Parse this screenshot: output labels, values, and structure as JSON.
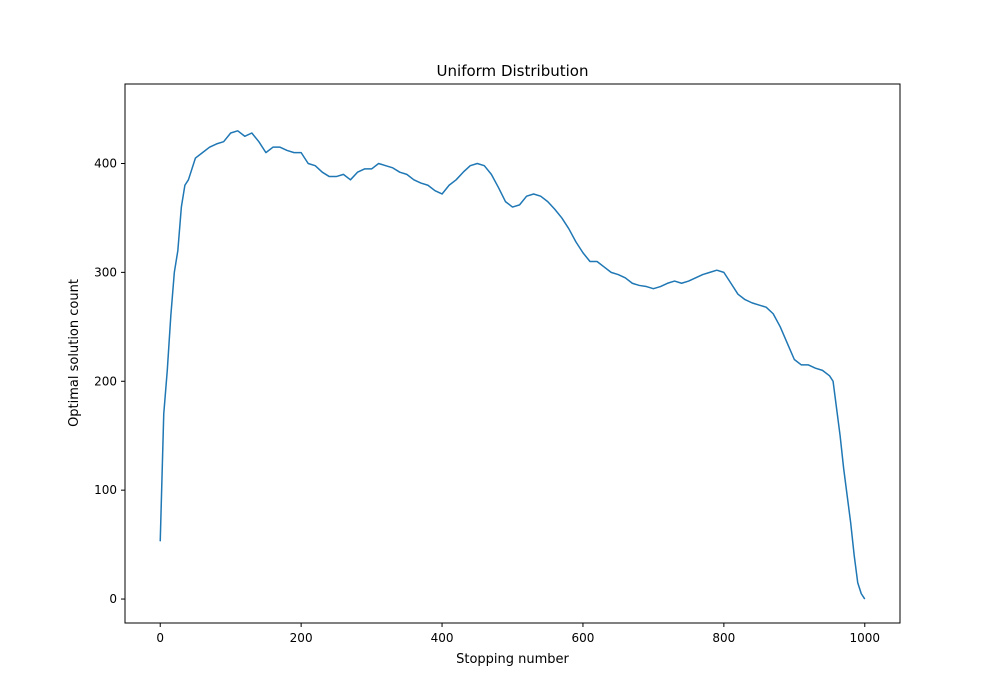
{
  "chart_data": {
    "type": "line",
    "title": "Uniform Distribution",
    "xlabel": "Stopping number",
    "ylabel": "Optimal solution count",
    "xlim": [
      -50,
      1050
    ],
    "ylim": [
      -22,
      473
    ],
    "xticks": [
      0,
      200,
      400,
      600,
      800,
      1000
    ],
    "yticks": [
      0,
      100,
      200,
      300,
      400
    ],
    "grid": false,
    "series": [
      {
        "color": "#1f77b4",
        "x": [
          0,
          5,
          10,
          15,
          20,
          25,
          30,
          35,
          40,
          50,
          60,
          70,
          80,
          90,
          100,
          110,
          120,
          130,
          140,
          150,
          160,
          170,
          180,
          190,
          200,
          210,
          220,
          230,
          240,
          250,
          260,
          270,
          280,
          290,
          300,
          310,
          320,
          330,
          340,
          350,
          360,
          370,
          380,
          390,
          400,
          410,
          420,
          430,
          440,
          450,
          460,
          470,
          480,
          490,
          500,
          510,
          520,
          530,
          540,
          550,
          560,
          570,
          580,
          590,
          600,
          610,
          620,
          630,
          640,
          650,
          660,
          670,
          680,
          690,
          700,
          710,
          720,
          730,
          740,
          750,
          760,
          770,
          780,
          790,
          800,
          810,
          820,
          830,
          840,
          850,
          860,
          870,
          880,
          890,
          900,
          910,
          920,
          930,
          940,
          950,
          955,
          960,
          965,
          970,
          975,
          980,
          985,
          990,
          995,
          1000
        ],
        "y": [
          53,
          170,
          210,
          260,
          300,
          320,
          360,
          380,
          385,
          405,
          410,
          415,
          418,
          420,
          428,
          430,
          425,
          428,
          420,
          410,
          415,
          415,
          412,
          410,
          410,
          400,
          398,
          392,
          388,
          388,
          390,
          385,
          392,
          395,
          395,
          400,
          398,
          396,
          392,
          390,
          385,
          382,
          380,
          375,
          372,
          380,
          385,
          392,
          398,
          400,
          398,
          390,
          378,
          365,
          360,
          362,
          370,
          372,
          370,
          365,
          358,
          350,
          340,
          328,
          318,
          310,
          310,
          305,
          300,
          298,
          295,
          290,
          288,
          287,
          285,
          287,
          290,
          292,
          290,
          292,
          295,
          298,
          300,
          302,
          300,
          290,
          280,
          275,
          272,
          270,
          268,
          262,
          250,
          235,
          220,
          215,
          215,
          212,
          210,
          205,
          200,
          175,
          150,
          120,
          95,
          70,
          40,
          15,
          5,
          0
        ]
      }
    ]
  }
}
